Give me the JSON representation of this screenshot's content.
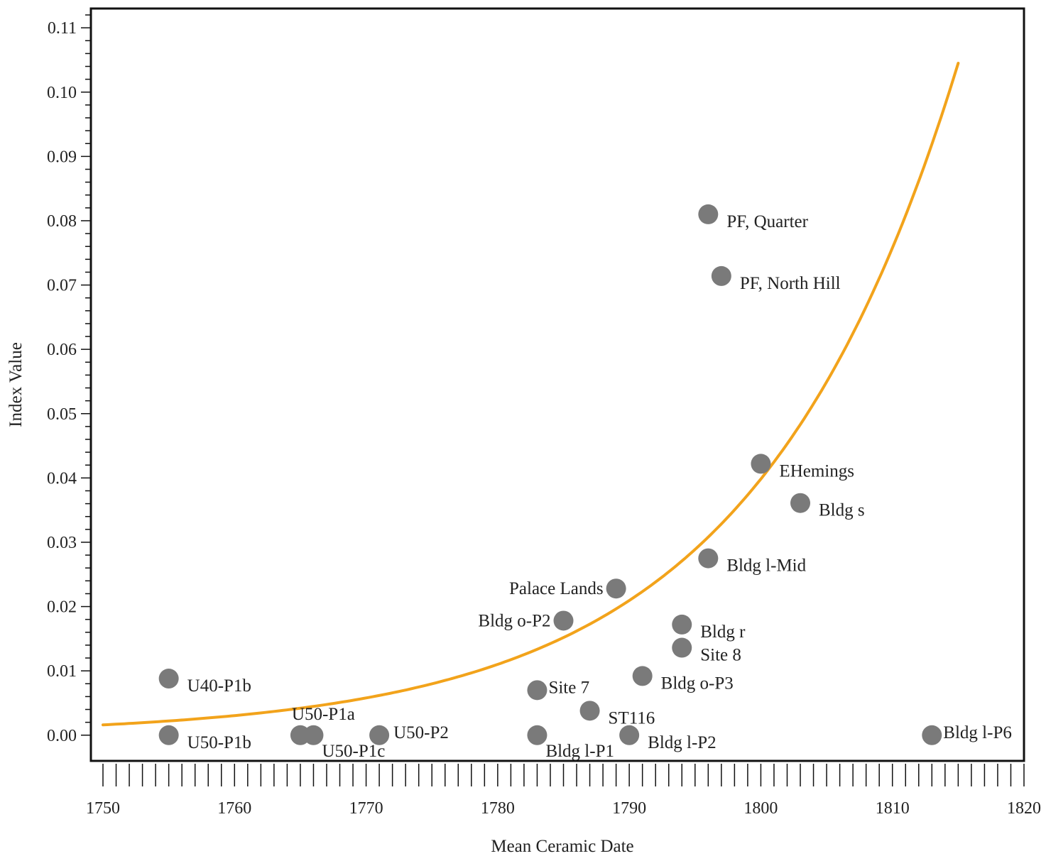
{
  "chart_data": {
    "type": "scatter",
    "xlabel": "Mean Ceramic Date",
    "ylabel": "Index Value",
    "xlim": [
      1750,
      1820
    ],
    "ylim": [
      -0.004,
      0.113
    ],
    "x_ticks": [
      1750,
      1760,
      1770,
      1780,
      1790,
      1800,
      1810,
      1820
    ],
    "x_tick_labels": [
      "1750",
      "1760",
      "1770",
      "1780",
      "1790",
      "1800",
      "1810",
      "1820"
    ],
    "y_ticks": [
      0.0,
      0.01,
      0.02,
      0.03,
      0.04,
      0.05,
      0.06,
      0.07,
      0.08,
      0.09,
      0.1,
      0.11
    ],
    "y_tick_labels": [
      "0.00",
      "0.01",
      "0.02",
      "0.03",
      "0.04",
      "0.05",
      "0.06",
      "0.07",
      "0.08",
      "0.09",
      "0.10",
      "0.11"
    ],
    "grid": false,
    "point_color": "#7a7a7a",
    "curve_color": "#f2a31b",
    "points": [
      {
        "label": "U40-P1b",
        "x": 1755,
        "y": 0.0088,
        "anchor": "start"
      },
      {
        "label": "U50-P1b",
        "x": 1755,
        "y": 0.0,
        "anchor": "start"
      },
      {
        "label": "U50-P1a",
        "x": 1765,
        "y": 0.0,
        "anchor": "start-above"
      },
      {
        "label": "U50-P1c",
        "x": 1766,
        "y": 0.0,
        "anchor": "start-below"
      },
      {
        "label": "U50-P2",
        "x": 1771,
        "y": 0.0,
        "anchor": "start-high"
      },
      {
        "label": "Site 7",
        "x": 1783,
        "y": 0.007,
        "anchor": "start-tight"
      },
      {
        "label": "Bldg l-P1",
        "x": 1783,
        "y": 0.0,
        "anchor": "start-below"
      },
      {
        "label": "Bldg o-P2",
        "x": 1785,
        "y": 0.0178,
        "anchor": "end"
      },
      {
        "label": "ST116",
        "x": 1787,
        "y": 0.0038,
        "anchor": "start"
      },
      {
        "label": "Palace Lands",
        "x": 1789,
        "y": 0.0228,
        "anchor": "end"
      },
      {
        "label": "Bldg l-P2",
        "x": 1790,
        "y": 0.0,
        "anchor": "start"
      },
      {
        "label": "Bldg o-P3",
        "x": 1791,
        "y": 0.0092,
        "anchor": "start"
      },
      {
        "label": "Bldg r",
        "x": 1794,
        "y": 0.0172,
        "anchor": "start"
      },
      {
        "label": "Site 8",
        "x": 1794,
        "y": 0.0136,
        "anchor": "start"
      },
      {
        "label": "PF, Quarter",
        "x": 1796,
        "y": 0.081,
        "anchor": "start"
      },
      {
        "label": "Bldg l-Mid",
        "x": 1796,
        "y": 0.0275,
        "anchor": "start"
      },
      {
        "label": "PF, North Hill",
        "x": 1797,
        "y": 0.0714,
        "anchor": "start"
      },
      {
        "label": "EHemings",
        "x": 1800,
        "y": 0.0422,
        "anchor": "start"
      },
      {
        "label": "Bldg s",
        "x": 1803,
        "y": 0.0361,
        "anchor": "start"
      },
      {
        "label": "Bldg l-P6",
        "x": 1813,
        "y": 0.0,
        "anchor": "start-tight"
      }
    ],
    "curve": {
      "type": "exponential",
      "x_range": [
        1750,
        1815
      ],
      "y_at_start": 0.0016,
      "y_at_end": 0.1045
    }
  }
}
